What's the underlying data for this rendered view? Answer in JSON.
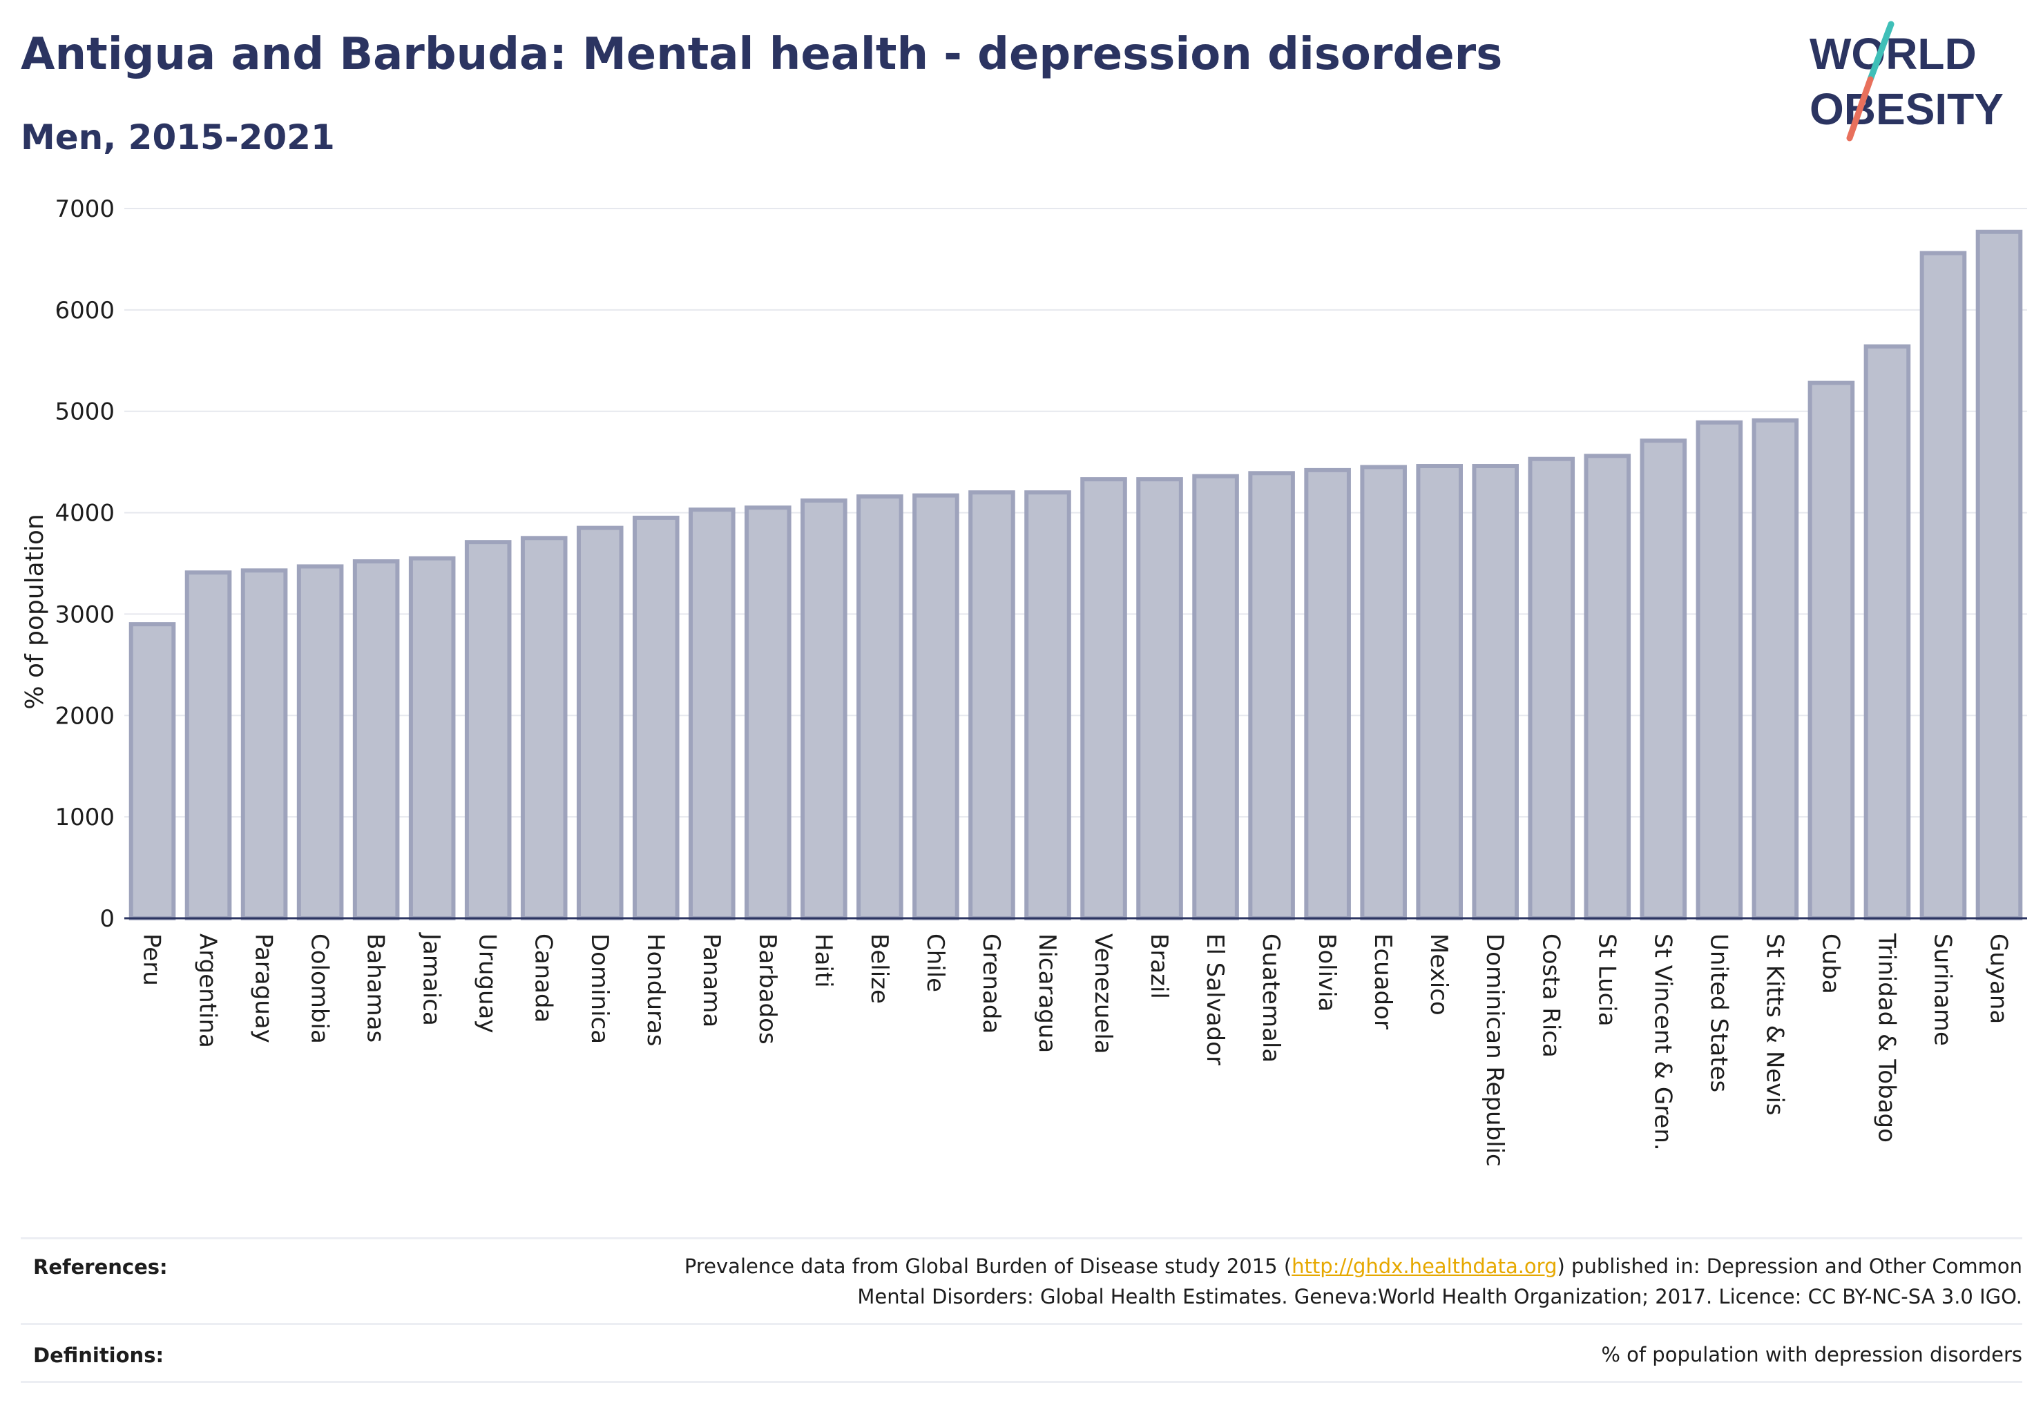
{
  "header": {
    "title": "Antigua and Barbuda: Mental health - depression disorders",
    "subtitle": "Men, 2015-2021"
  },
  "logo": {
    "line1": "WORLD",
    "line2": "OBESITY",
    "accent_colors": [
      "#3fbfb8",
      "#e8705c"
    ]
  },
  "chart_data": {
    "type": "bar",
    "title": "Antigua and Barbuda: Mental health - depression disorders",
    "subtitle": "Men, 2015-2021",
    "xlabel": "",
    "ylabel": "% of population",
    "ylim": [
      0,
      7000
    ],
    "yticks": [
      0,
      1000,
      2000,
      3000,
      4000,
      5000,
      6000,
      7000
    ],
    "grid": true,
    "bar_fill": "#bcc0cf",
    "bar_stroke": "#9ea3bc",
    "categories": [
      "Peru",
      "Argentina",
      "Paraguay",
      "Colombia",
      "Bahamas",
      "Jamaica",
      "Uruguay",
      "Canada",
      "Dominica",
      "Honduras",
      "Panama",
      "Barbados",
      "Haiti",
      "Belize",
      "Chile",
      "Grenada",
      "Nicaragua",
      "Venezuela",
      "Brazil",
      "El Salvador",
      "Guatemala",
      "Bolivia",
      "Ecuador",
      "Mexico",
      "Dominican Republic",
      "Costa Rica",
      "St Lucia",
      "St Vincent & Gren.",
      "United States",
      "St Kitts & Nevis",
      "Cuba",
      "Trinidad & Tobago",
      "Suriname",
      "Guyana"
    ],
    "values": [
      2900,
      3410,
      3430,
      3470,
      3520,
      3550,
      3710,
      3750,
      3850,
      3950,
      4030,
      4050,
      4120,
      4160,
      4170,
      4200,
      4200,
      4330,
      4330,
      4360,
      4390,
      4420,
      4450,
      4460,
      4460,
      4530,
      4560,
      4710,
      4890,
      4910,
      5280,
      5640,
      6560,
      6770
    ]
  },
  "footer": {
    "references_label": "References:",
    "references_text_before": "Prevalence data from Global Burden of Disease study 2015 (",
    "references_link": "http://ghdx.healthdata.org",
    "references_text_after": ") published in: Depression and Other Common",
    "references_line2": "Mental Disorders: Global Health Estimates. Geneva:World Health Organization; 2017. Licence: CC BY-NC-SA 3.0 IGO.",
    "definitions_label": "Definitions:",
    "definitions_text": "% of population with depression disorders"
  }
}
